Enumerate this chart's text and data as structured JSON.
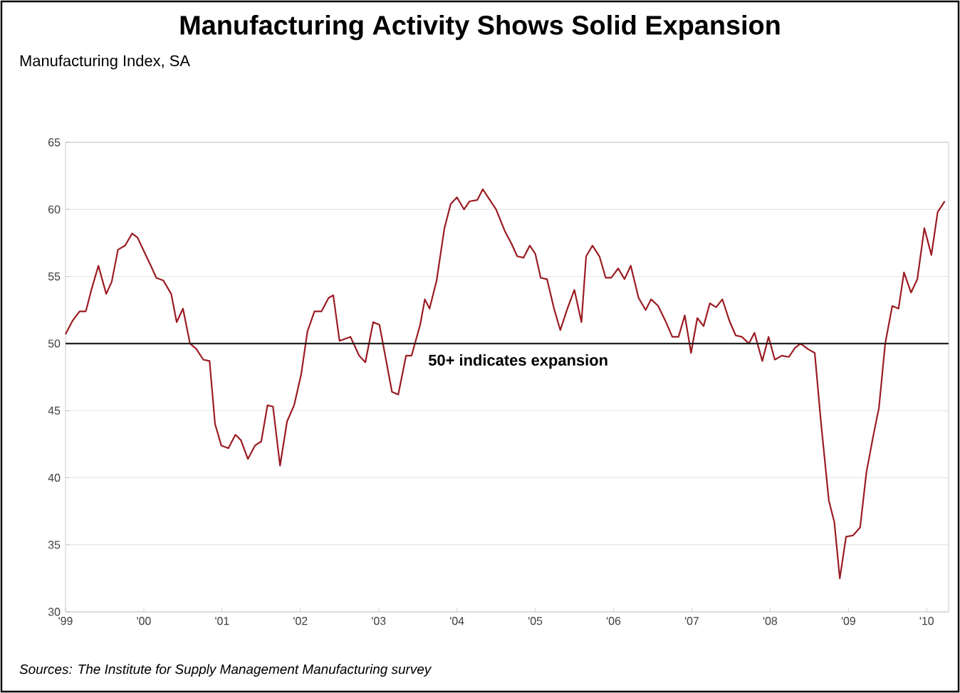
{
  "chart_data": {
    "type": "line",
    "title": "Manufacturing Activity Shows Solid Expansion",
    "ylabel": "Manufacturing Index, SA",
    "annotations": [
      "Sources: The Institute for Supply Management Manufacturing survey"
    ],
    "xlim": [
      1999,
      2010.28
    ],
    "ylim": [
      30,
      65
    ],
    "xticks": [
      {
        "value": 1999,
        "label": "'99"
      },
      {
        "value": 2000,
        "label": "'00"
      },
      {
        "value": 2001,
        "label": "'01"
      },
      {
        "value": 2002,
        "label": "'02"
      },
      {
        "value": 2003,
        "label": "'03"
      },
      {
        "value": 2004,
        "label": "'04"
      },
      {
        "value": 2005,
        "label": "'05"
      },
      {
        "value": 2006,
        "label": "'06"
      },
      {
        "value": 2007,
        "label": "'07"
      },
      {
        "value": 2008,
        "label": "'08"
      },
      {
        "value": 2009,
        "label": "'09"
      },
      {
        "value": 2010,
        "label": "'10"
      }
    ],
    "yticks": [
      30,
      35,
      40,
      45,
      50,
      55,
      60,
      65
    ],
    "grid": "y",
    "marker": "none",
    "line_style": "solid",
    "ref_lines": [
      {
        "axis": "y",
        "value": 50,
        "label": "50+  indicates expansion",
        "color": "#222222",
        "line_style": "solid"
      }
    ],
    "series": [
      {
        "color": "#9b1b22",
        "x": [
          1999.0,
          1999.09,
          1999.18,
          1999.26,
          1999.33,
          1999.42,
          1999.52,
          1999.59,
          1999.67,
          1999.76,
          1999.85,
          1999.92,
          2000.0,
          2000.09,
          2000.16,
          2000.25,
          2000.35,
          2000.42,
          2000.5,
          2000.59,
          2000.67,
          2000.76,
          2000.84,
          2000.91,
          2000.99,
          2001.08,
          2001.17,
          2001.24,
          2001.33,
          2001.42,
          2001.5,
          2001.58,
          2001.65,
          2001.74,
          2001.83,
          2001.92,
          2002.01,
          2002.09,
          2002.18,
          2002.27,
          2002.36,
          2002.42,
          2002.5,
          2002.64,
          2002.75,
          2002.83,
          2002.93,
          2003.01,
          2003.17,
          2003.25,
          2003.35,
          2003.42,
          2003.53,
          2003.59,
          2003.65,
          2003.74,
          2003.84,
          2003.92,
          2004.0,
          2004.09,
          2004.16,
          2004.26,
          2004.33,
          2004.42,
          2004.5,
          2004.61,
          2004.7,
          2004.77,
          2004.85,
          2004.93,
          2005.0,
          2005.07,
          2005.15,
          2005.24,
          2005.32,
          2005.41,
          2005.5,
          2005.59,
          2005.65,
          2005.73,
          2005.82,
          2005.9,
          2005.97,
          2006.06,
          2006.14,
          2006.22,
          2006.32,
          2006.41,
          2006.48,
          2006.57,
          2006.67,
          2006.75,
          2006.83,
          2006.91,
          2006.99,
          2007.07,
          2007.15,
          2007.23,
          2007.31,
          2007.39,
          2007.48,
          2007.56,
          2007.64,
          2007.73,
          2007.8,
          2007.9,
          2007.98,
          2008.06,
          2008.15,
          2008.24,
          2008.32,
          2008.39,
          2008.48,
          2008.57,
          2008.65,
          2008.75,
          2008.82,
          2008.89,
          2008.97,
          2009.06,
          2009.15,
          2009.23,
          2009.32,
          2009.39,
          2009.47,
          2009.56,
          2009.64,
          2009.71,
          2009.8,
          2009.88,
          2009.97,
          2010.06,
          2010.14,
          2010.23
        ],
        "values": [
          50.7,
          51.7,
          52.4,
          52.4,
          54.0,
          55.8,
          53.7,
          54.6,
          57.0,
          57.3,
          58.2,
          57.9,
          56.9,
          55.8,
          54.9,
          54.7,
          53.7,
          51.6,
          52.6,
          50.0,
          49.6,
          48.8,
          48.7,
          44.0,
          42.4,
          42.2,
          43.2,
          42.8,
          41.4,
          42.4,
          42.7,
          45.4,
          45.3,
          40.9,
          44.2,
          45.4,
          47.7,
          50.9,
          52.4,
          52.4,
          53.4,
          53.6,
          50.2,
          50.5,
          49.1,
          48.6,
          51.6,
          51.4,
          46.4,
          46.2,
          49.1,
          49.1,
          51.4,
          53.3,
          52.6,
          54.7,
          58.6,
          60.4,
          60.9,
          60.0,
          60.6,
          60.7,
          61.5,
          60.7,
          60.0,
          58.4,
          57.4,
          56.5,
          56.4,
          57.3,
          56.7,
          54.9,
          54.8,
          52.6,
          51.0,
          52.6,
          54.0,
          51.6,
          56.5,
          57.3,
          56.5,
          54.9,
          54.9,
          55.6,
          54.8,
          55.8,
          53.4,
          52.5,
          53.3,
          52.8,
          51.6,
          50.5,
          50.5,
          52.1,
          49.3,
          51.9,
          51.3,
          53.0,
          52.7,
          53.3,
          51.7,
          50.6,
          50.5,
          50.0,
          50.8,
          48.7,
          50.5,
          48.8,
          49.1,
          49.0,
          49.7,
          50.0,
          49.6,
          49.3,
          44.1,
          38.3,
          36.7,
          32.5,
          35.6,
          35.7,
          36.3,
          40.4,
          43.2,
          45.2,
          50.0,
          52.8,
          52.6,
          55.3,
          53.8,
          54.8,
          58.6,
          56.6,
          59.8,
          60.6
        ]
      }
    ]
  }
}
